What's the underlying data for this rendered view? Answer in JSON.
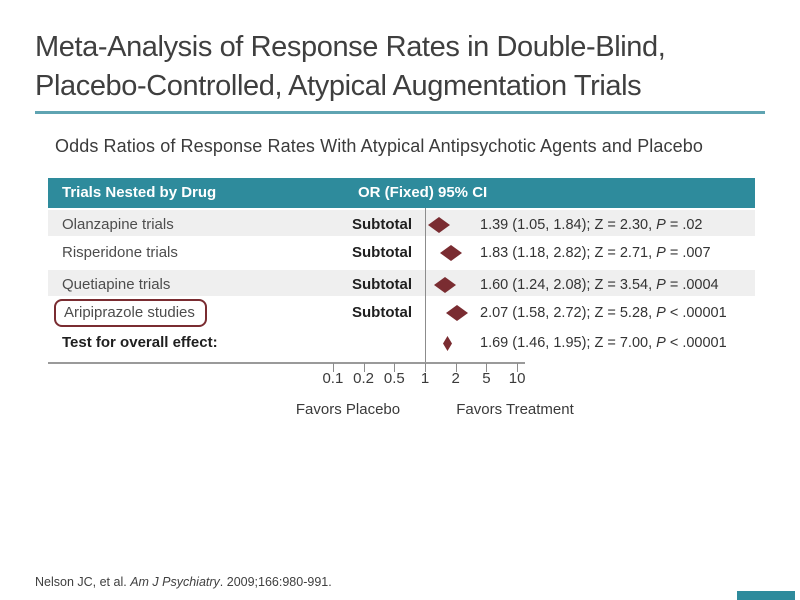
{
  "slide": {
    "title_line1": "Meta-Analysis of Response Rates in Double-Blind,",
    "title_line2": "Placebo-Controlled, Atypical Augmentation Trials",
    "subtitle": "Odds Ratios of Response Rates With Atypical Antipsychotic Agents and Placebo",
    "citation": {
      "pre": "Nelson JC, et al. ",
      "journal": "Am J Psychiatry",
      "post": ". 2009;166:980-991."
    }
  },
  "colors": {
    "teal": "#2e8b9c",
    "teal_light": "#5fa4b2",
    "maroon": "#7a2c31",
    "row_alt": "#efefef"
  },
  "chart_data": {
    "type": "forest-plot",
    "title": "Odds Ratios of Response Rates With Atypical Antipsychotic Agents and Placebo",
    "header": {
      "col1": "Trials Nested by Drug",
      "col2": "OR (Fixed) 95% CI"
    },
    "rows": [
      {
        "label": "Olanzapine trials",
        "subtotal": "Subtotal",
        "or": 1.39,
        "ci_low": 1.05,
        "ci_high": 1.84,
        "z": 2.3,
        "stat_pre": "1.39 (1.05, 1.84); Z = 2.30, ",
        "p_label": "P",
        "p_rest": " = .02",
        "shaded": true,
        "boxed": false,
        "bold_label": false,
        "diamond": "large"
      },
      {
        "label": "Risperidone trials",
        "subtotal": "Subtotal",
        "or": 1.83,
        "ci_low": 1.18,
        "ci_high": 2.82,
        "z": 2.71,
        "stat_pre": "1.83 (1.18, 2.82); Z = 2.71, ",
        "p_label": "P",
        "p_rest": " = .007",
        "shaded": false,
        "boxed": false,
        "bold_label": false,
        "diamond": "large"
      },
      {
        "label": "Quetiapine trials",
        "subtotal": "Subtotal",
        "or": 1.6,
        "ci_low": 1.24,
        "ci_high": 2.08,
        "z": 3.54,
        "stat_pre": "1.60 (1.24, 2.08); Z = 3.54, ",
        "p_label": "P",
        "p_rest": " = .0004",
        "shaded": true,
        "boxed": false,
        "bold_label": false,
        "diamond": "large"
      },
      {
        "label": "Aripiprazole studies",
        "subtotal": "Subtotal",
        "or": 2.07,
        "ci_low": 1.58,
        "ci_high": 2.72,
        "z": 5.28,
        "stat_pre": "2.07 (1.58, 2.72); Z = 5.28, ",
        "p_label": "P",
        "p_rest": " < .00001",
        "shaded": false,
        "boxed": true,
        "bold_label": false,
        "diamond": "large"
      },
      {
        "label": "Test for overall effect:",
        "subtotal": "",
        "or": 1.69,
        "ci_low": 1.46,
        "ci_high": 1.95,
        "z": 7.0,
        "stat_pre": "1.69 (1.46, 1.95); Z = 7.00, ",
        "p_label": "P",
        "p_rest": " < .00001",
        "shaded": false,
        "boxed": false,
        "bold_label": true,
        "diamond": "small"
      }
    ],
    "axis": {
      "scale": "log",
      "tick_labels": [
        "0.1",
        "0.2",
        "0.5",
        "1",
        "2",
        "5",
        "10"
      ],
      "tick_values": [
        0.1,
        0.2,
        0.5,
        1,
        2,
        5,
        10
      ],
      "null_value": 1,
      "left_label": "Favors Placebo",
      "right_label": "Favors Treatment"
    }
  }
}
